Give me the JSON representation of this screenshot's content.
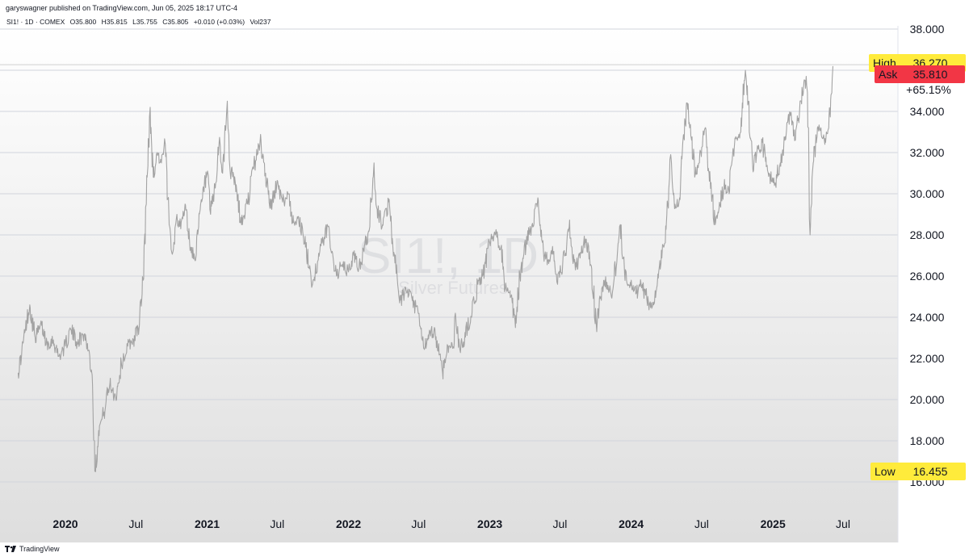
{
  "header": {
    "published": "garyswagner published on TradingView.com, Jun 05, 2025 18:17 UTC-4"
  },
  "legend": {
    "symbol": "SI1! · 1D · COMEX",
    "open": "O35.800",
    "high": "H35.815",
    "low": "L35.755",
    "close": "C35.805",
    "change": "+0.010 (+0.03%)",
    "volume": "Vol237"
  },
  "watermark": {
    "symbol": "SI1!, 1D",
    "name": "Silver Futures"
  },
  "price_labels": {
    "high_tag": "High",
    "high_value": "36.270",
    "ask_tag": "Ask",
    "ask_value": "35.810",
    "percent": "+65.15%",
    "low_tag": "Low",
    "low_value": "16.455"
  },
  "footer": {
    "brand": "TradingView"
  },
  "colors": {
    "line": "#a3a3a3",
    "grid": "#d1d4dc",
    "ask": "#f23645",
    "highlight": "#ffeb3b"
  },
  "chart_data": {
    "type": "line",
    "title": "SI1!, 1D",
    "subtitle": "Silver Futures",
    "xlabel": "",
    "ylabel": "",
    "ylim": [
      15,
      39
    ],
    "xlim": [
      "2019-09-01",
      "2025-09-01"
    ],
    "grid": true,
    "y_ticks": [
      "16.000",
      "18.000",
      "20.000",
      "22.000",
      "24.000",
      "26.000",
      "28.000",
      "30.000",
      "32.000",
      "34.000",
      "36.000",
      "38.000"
    ],
    "y_tick_values": [
      16,
      18,
      20,
      22,
      24,
      26,
      28,
      30,
      32,
      34,
      36,
      38
    ],
    "x_ticks": [
      {
        "label": "2020",
        "date": "2020-01-01",
        "bold": true
      },
      {
        "label": "Jul",
        "date": "2020-07-01",
        "bold": false
      },
      {
        "label": "2021",
        "date": "2021-01-01",
        "bold": true
      },
      {
        "label": "Jul",
        "date": "2021-07-01",
        "bold": false
      },
      {
        "label": "2022",
        "date": "2022-01-01",
        "bold": true
      },
      {
        "label": "Jul",
        "date": "2022-07-01",
        "bold": false
      },
      {
        "label": "2023",
        "date": "2023-01-01",
        "bold": true
      },
      {
        "label": "Jul",
        "date": "2023-07-01",
        "bold": false
      },
      {
        "label": "2024",
        "date": "2024-01-01",
        "bold": true
      },
      {
        "label": "Jul",
        "date": "2024-07-01",
        "bold": false
      },
      {
        "label": "2025",
        "date": "2025-01-01",
        "bold": true
      },
      {
        "label": "Jul",
        "date": "2025-07-01",
        "bold": false
      }
    ],
    "high_level": 36.27,
    "ask_level": 35.81,
    "low_level": 16.455,
    "series": [
      {
        "points": [
          [
            "2019-09-01",
            21.3
          ],
          [
            "2019-09-10",
            22.2
          ],
          [
            "2019-09-20",
            23.4
          ],
          [
            "2019-10-01",
            24.6
          ],
          [
            "2019-10-15",
            23.0
          ],
          [
            "2019-11-01",
            23.6
          ],
          [
            "2019-11-15",
            22.7
          ],
          [
            "2019-12-01",
            22.9
          ],
          [
            "2019-12-15",
            22.1
          ],
          [
            "2020-01-01",
            22.6
          ],
          [
            "2020-01-15",
            23.4
          ],
          [
            "2020-02-01",
            22.8
          ],
          [
            "2020-02-20",
            23.2
          ],
          [
            "2020-03-01",
            22.4
          ],
          [
            "2020-03-10",
            21.2
          ],
          [
            "2020-03-19",
            16.5
          ],
          [
            "2020-03-27",
            18.5
          ],
          [
            "2020-04-10",
            19.4
          ],
          [
            "2020-04-25",
            20.8
          ],
          [
            "2020-05-10",
            20.1
          ],
          [
            "2020-05-25",
            21.7
          ],
          [
            "2020-06-10",
            22.6
          ],
          [
            "2020-06-25",
            22.9
          ],
          [
            "2020-07-10",
            23.6
          ],
          [
            "2020-07-20",
            25.8
          ],
          [
            "2020-07-28",
            29.5
          ],
          [
            "2020-08-07",
            34.2
          ],
          [
            "2020-08-15",
            30.8
          ],
          [
            "2020-08-25",
            32.0
          ],
          [
            "2020-09-05",
            31.5
          ],
          [
            "2020-09-15",
            32.4
          ],
          [
            "2020-09-25",
            28.5
          ],
          [
            "2020-10-05",
            27.2
          ],
          [
            "2020-10-15",
            29.0
          ],
          [
            "2020-10-25",
            28.3
          ],
          [
            "2020-11-05",
            29.5
          ],
          [
            "2020-11-20",
            27.4
          ],
          [
            "2020-11-30",
            26.8
          ],
          [
            "2020-12-10",
            28.4
          ],
          [
            "2020-12-20",
            29.8
          ],
          [
            "2021-01-01",
            31.0
          ],
          [
            "2021-01-10",
            29.0
          ],
          [
            "2021-01-25",
            30.6
          ],
          [
            "2021-02-01",
            32.5
          ],
          [
            "2021-02-10",
            31.0
          ],
          [
            "2021-02-22",
            34.5
          ],
          [
            "2021-03-01",
            31.2
          ],
          [
            "2021-03-15",
            30.5
          ],
          [
            "2021-03-31",
            28.5
          ],
          [
            "2021-04-15",
            29.5
          ],
          [
            "2021-05-01",
            31.2
          ],
          [
            "2021-05-18",
            32.6
          ],
          [
            "2021-06-01",
            31.0
          ],
          [
            "2021-06-15",
            29.3
          ],
          [
            "2021-06-30",
            30.5
          ],
          [
            "2021-07-15",
            29.6
          ],
          [
            "2021-08-01",
            30.0
          ],
          [
            "2021-08-10",
            28.6
          ],
          [
            "2021-08-25",
            28.9
          ],
          [
            "2021-09-10",
            27.6
          ],
          [
            "2021-09-25",
            26.2
          ],
          [
            "2021-09-30",
            25.6
          ],
          [
            "2021-10-15",
            26.8
          ],
          [
            "2021-10-25",
            27.6
          ],
          [
            "2021-11-10",
            28.4
          ],
          [
            "2021-11-20",
            27.2
          ],
          [
            "2021-12-01",
            26.0
          ],
          [
            "2021-12-15",
            26.5
          ],
          [
            "2022-01-01",
            26.2
          ],
          [
            "2022-01-15",
            27.0
          ],
          [
            "2022-01-28",
            26.4
          ],
          [
            "2022-02-10",
            27.2
          ],
          [
            "2022-02-25",
            28.4
          ],
          [
            "2022-03-08",
            31.5
          ],
          [
            "2022-03-15",
            29.3
          ],
          [
            "2022-03-30",
            28.5
          ],
          [
            "2022-04-15",
            29.6
          ],
          [
            "2022-04-30",
            27.0
          ],
          [
            "2022-05-13",
            24.7
          ],
          [
            "2022-05-30",
            25.3
          ],
          [
            "2022-06-15",
            24.8
          ],
          [
            "2022-06-30",
            24.2
          ],
          [
            "2022-07-14",
            22.5
          ],
          [
            "2022-07-25",
            22.9
          ],
          [
            "2022-08-10",
            23.4
          ],
          [
            "2022-08-25",
            22.2
          ],
          [
            "2022-09-01",
            21.3
          ],
          [
            "2022-09-15",
            22.6
          ],
          [
            "2022-09-30",
            22.5
          ],
          [
            "2022-10-04",
            24.2
          ],
          [
            "2022-10-15",
            22.5
          ],
          [
            "2022-10-25",
            22.8
          ],
          [
            "2022-11-05",
            23.6
          ],
          [
            "2022-11-15",
            24.0
          ],
          [
            "2022-12-01",
            25.6
          ],
          [
            "2022-12-15",
            26.1
          ],
          [
            "2023-01-01",
            27.6
          ],
          [
            "2023-01-15",
            28.0
          ],
          [
            "2023-01-31",
            27.5
          ],
          [
            "2023-02-10",
            25.4
          ],
          [
            "2023-02-28",
            24.7
          ],
          [
            "2023-03-08",
            23.5
          ],
          [
            "2023-03-20",
            26.0
          ],
          [
            "2023-04-05",
            27.6
          ],
          [
            "2023-04-20",
            28.5
          ],
          [
            "2023-05-05",
            29.8
          ],
          [
            "2023-05-20",
            27.0
          ],
          [
            "2023-06-01",
            26.8
          ],
          [
            "2023-06-15",
            27.2
          ],
          [
            "2023-06-25",
            25.6
          ],
          [
            "2023-07-15",
            27.0
          ],
          [
            "2023-07-25",
            28.4
          ],
          [
            "2023-08-10",
            26.3
          ],
          [
            "2023-08-25",
            27.1
          ],
          [
            "2023-09-05",
            27.8
          ],
          [
            "2023-09-20",
            26.5
          ],
          [
            "2023-10-03",
            23.6
          ],
          [
            "2023-10-15",
            25.0
          ],
          [
            "2023-10-25",
            25.8
          ],
          [
            "2023-11-10",
            25.1
          ],
          [
            "2023-11-25",
            26.7
          ],
          [
            "2023-12-04",
            28.5
          ],
          [
            "2023-12-15",
            26.1
          ],
          [
            "2023-12-30",
            25.7
          ],
          [
            "2024-01-15",
            25.2
          ],
          [
            "2024-01-30",
            25.6
          ],
          [
            "2024-02-15",
            24.6
          ],
          [
            "2024-02-28",
            24.6
          ],
          [
            "2024-03-10",
            26.1
          ],
          [
            "2024-03-25",
            27.4
          ],
          [
            "2024-04-05",
            29.4
          ],
          [
            "2024-04-12",
            31.9
          ],
          [
            "2024-04-25",
            29.3
          ],
          [
            "2024-05-05",
            29.8
          ],
          [
            "2024-05-20",
            33.4
          ],
          [
            "2024-05-25",
            34.4
          ],
          [
            "2024-06-05",
            32.6
          ],
          [
            "2024-06-15",
            31.0
          ],
          [
            "2024-06-25",
            31.5
          ],
          [
            "2024-07-10",
            33.2
          ],
          [
            "2024-07-20",
            31.0
          ],
          [
            "2024-08-05",
            28.5
          ],
          [
            "2024-08-15",
            29.3
          ],
          [
            "2024-08-28",
            30.4
          ],
          [
            "2024-09-10",
            30.0
          ],
          [
            "2024-09-25",
            32.7
          ],
          [
            "2024-10-10",
            33.0
          ],
          [
            "2024-10-22",
            36.0
          ],
          [
            "2024-10-30",
            34.5
          ],
          [
            "2024-11-10",
            31.2
          ],
          [
            "2024-11-20",
            32.0
          ],
          [
            "2024-12-05",
            32.5
          ],
          [
            "2024-12-20",
            31.0
          ],
          [
            "2025-01-05",
            30.4
          ],
          [
            "2025-01-20",
            31.5
          ],
          [
            "2025-02-01",
            32.6
          ],
          [
            "2025-02-15",
            33.8
          ],
          [
            "2025-02-28",
            32.6
          ],
          [
            "2025-03-15",
            34.5
          ],
          [
            "2025-03-28",
            35.7
          ],
          [
            "2025-04-03",
            33.2
          ],
          [
            "2025-04-07",
            28.0
          ],
          [
            "2025-04-15",
            31.5
          ],
          [
            "2025-04-25",
            32.8
          ],
          [
            "2025-05-05",
            33.2
          ],
          [
            "2025-05-15",
            32.4
          ],
          [
            "2025-05-25",
            33.2
          ],
          [
            "2025-06-02",
            34.9
          ],
          [
            "2025-06-05",
            36.2
          ]
        ]
      }
    ]
  }
}
